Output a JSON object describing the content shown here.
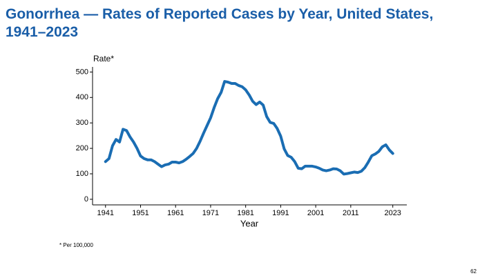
{
  "chart_data": {
    "type": "line",
    "title": "Gonorrhea — Rates of Reported Cases by Year, United States, 1941–2023",
    "y_label": "Rate*",
    "x_label": "Year",
    "footnote": "* Per 100,000",
    "page_number": "62",
    "x": [
      1941,
      1942,
      1943,
      1944,
      1945,
      1946,
      1947,
      1948,
      1949,
      1950,
      1951,
      1952,
      1953,
      1954,
      1955,
      1956,
      1957,
      1958,
      1959,
      1960,
      1961,
      1962,
      1963,
      1964,
      1965,
      1966,
      1967,
      1968,
      1969,
      1970,
      1971,
      1972,
      1973,
      1974,
      1975,
      1976,
      1977,
      1978,
      1979,
      1980,
      1981,
      1982,
      1983,
      1984,
      1985,
      1986,
      1987,
      1988,
      1989,
      1990,
      1991,
      1992,
      1993,
      1994,
      1995,
      1996,
      1997,
      1998,
      1999,
      2000,
      2001,
      2002,
      2003,
      2004,
      2005,
      2006,
      2007,
      2008,
      2009,
      2010,
      2011,
      2012,
      2013,
      2014,
      2015,
      2016,
      2017,
      2018,
      2019,
      2020,
      2021,
      2022,
      2023
    ],
    "series": [
      {
        "name": "Rate",
        "color": "#1a6db3",
        "values": [
          148,
          160,
          210,
          235,
          225,
          275,
          270,
          245,
          225,
          200,
          170,
          160,
          155,
          155,
          148,
          138,
          128,
          135,
          138,
          146,
          146,
          143,
          148,
          157,
          168,
          180,
          200,
          228,
          260,
          290,
          320,
          360,
          395,
          420,
          463,
          460,
          455,
          455,
          447,
          442,
          430,
          410,
          385,
          372,
          382,
          370,
          325,
          302,
          298,
          278,
          248,
          198,
          172,
          165,
          148,
          122,
          120,
          130,
          130,
          130,
          127,
          122,
          115,
          112,
          115,
          120,
          119,
          112,
          99,
          101,
          104,
          107,
          105,
          110,
          124,
          146,
          171,
          178,
          188,
          206,
          214,
          194,
          180
        ]
      }
    ],
    "xlim": [
      1937.3,
      2027
    ],
    "xticks": [
      1941,
      1951,
      1961,
      1971,
      1981,
      1991,
      2001,
      2011,
      2023
    ],
    "ylim": [
      -22,
      520
    ],
    "yticks": [
      0,
      100,
      200,
      300,
      400,
      500
    ]
  }
}
